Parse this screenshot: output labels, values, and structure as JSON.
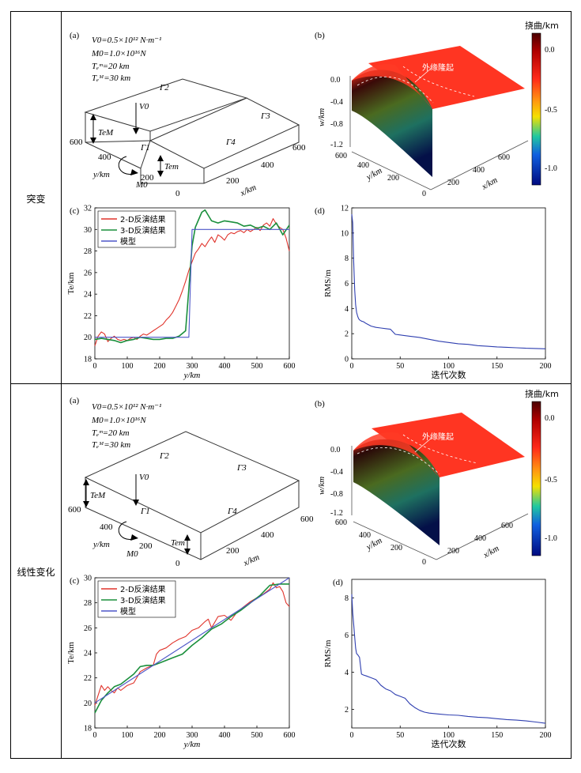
{
  "row_labels": [
    "突变",
    "线性变化"
  ],
  "panel_letters": {
    "a": "(a)",
    "b": "(b)",
    "c": "(c)",
    "d": "(d)"
  },
  "params": {
    "V0": "V0=0.5×10¹² N·m⁻¹",
    "M0": "M0=1.0×10¹⁶N",
    "Tem": "Tₑᵐ=20 km",
    "TeM": "Tₑᴹ=30 km"
  },
  "block_labels": {
    "gamma1": "Γ1",
    "gamma2": "Γ2",
    "gamma3": "Γ3",
    "gamma4": "Γ4",
    "v0": "V0",
    "m0": "M0",
    "teM": "TeM",
    "tem": "Tem"
  },
  "block_axes": {
    "y_label": "y/km",
    "x_label": "x/km",
    "y_ticks": [
      "600",
      "400",
      "200",
      "0"
    ],
    "x_ticks": [
      "200",
      "400",
      "600"
    ]
  },
  "surface": {
    "w_label": "w/km",
    "z_ticks": [
      "0.0",
      "-0.4",
      "-0.8",
      "-1.2"
    ],
    "y_label": "y/km",
    "x_label": "x/km",
    "y_ticks": [
      "600",
      "400",
      "200",
      "0"
    ],
    "x_ticks": [
      "200",
      "400",
      "600"
    ],
    "annotation": "外缘隆起",
    "colorbar_title": "挠曲/km",
    "colorbar_ticks": [
      "0.0",
      "-0.5",
      "-1.0"
    ],
    "colors": {
      "top": "#5a0000",
      "mid_red": "#ff2a1a",
      "yellow": "#f5e000",
      "cyan": "#20c8d8",
      "blue": "#001a9a",
      "surface_flat": "#ff3322"
    }
  },
  "chart_data": [
    {
      "id": "row1_c",
      "type": "line",
      "xlabel": "y/km",
      "ylabel": "Te/km",
      "xlim": [
        0,
        600
      ],
      "ylim": [
        18,
        32
      ],
      "x_ticks": [
        0,
        100,
        200,
        300,
        400,
        500,
        600
      ],
      "y_ticks": [
        18,
        20,
        22,
        24,
        26,
        28,
        30,
        32
      ],
      "legend_position": "top-left",
      "series": [
        {
          "name": "2-D反演结果",
          "color": "#e0332b",
          "x": [
            0,
            10,
            20,
            30,
            40,
            50,
            60,
            70,
            80,
            90,
            100,
            110,
            120,
            130,
            140,
            150,
            160,
            170,
            180,
            190,
            200,
            210,
            220,
            230,
            240,
            250,
            260,
            270,
            280,
            290,
            300,
            310,
            320,
            330,
            340,
            350,
            360,
            370,
            380,
            390,
            400,
            410,
            420,
            430,
            440,
            450,
            460,
            470,
            480,
            490,
            500,
            510,
            520,
            530,
            540,
            550,
            560,
            570,
            580,
            590,
            600
          ],
          "y": [
            19.2,
            20.1,
            20.5,
            20.3,
            19.6,
            19.9,
            20.1,
            19.8,
            19.7,
            19.8,
            19.7,
            19.9,
            20.0,
            19.8,
            20.1,
            20.3,
            20.2,
            20.4,
            20.6,
            20.8,
            21.0,
            21.2,
            21.6,
            21.9,
            22.3,
            22.9,
            23.5,
            24.3,
            25.2,
            26.2,
            27.0,
            27.8,
            28.2,
            28.7,
            28.4,
            28.9,
            29.3,
            28.8,
            29.5,
            29.3,
            29.0,
            29.5,
            29.7,
            29.6,
            29.8,
            29.9,
            29.7,
            30.0,
            29.8,
            30.0,
            30.2,
            29.9,
            30.4,
            30.6,
            30.3,
            31.0,
            30.5,
            30.2,
            30.0,
            29.2,
            28.0
          ]
        },
        {
          "name": "3-D反演结果",
          "color": "#1a8f3c",
          "x": [
            0,
            20,
            40,
            60,
            80,
            100,
            120,
            140,
            160,
            180,
            200,
            220,
            240,
            260,
            280,
            290,
            300,
            310,
            320,
            330,
            340,
            350,
            360,
            380,
            400,
            420,
            440,
            460,
            480,
            500,
            520,
            540,
            560,
            580,
            600
          ],
          "y": [
            19.8,
            19.9,
            19.8,
            19.7,
            19.5,
            19.7,
            19.8,
            20.0,
            19.9,
            19.8,
            19.8,
            19.9,
            19.9,
            20.1,
            20.6,
            24.5,
            28.5,
            30.2,
            30.9,
            31.6,
            31.8,
            31.3,
            30.8,
            30.6,
            30.8,
            30.7,
            30.6,
            30.3,
            30.4,
            30.1,
            30.3,
            30.0,
            30.6,
            29.5,
            30.4
          ]
        },
        {
          "name": "模型",
          "color": "#4d57c8",
          "x": [
            0,
            290,
            300,
            600
          ],
          "y": [
            20,
            20,
            30,
            30
          ]
        }
      ]
    },
    {
      "id": "row1_d",
      "type": "line",
      "xlabel": "迭代次数",
      "ylabel": "RMS/m",
      "xlim": [
        0,
        200
      ],
      "ylim": [
        0,
        12
      ],
      "x_ticks": [
        0,
        50,
        100,
        150,
        200
      ],
      "y_ticks": [
        0,
        2,
        4,
        6,
        8,
        10,
        12
      ],
      "series": [
        {
          "name": "RMS",
          "color": "#2f3fb0",
          "x": [
            0,
            1,
            2,
            3,
            4,
            5,
            6,
            7,
            8,
            10,
            12,
            15,
            20,
            25,
            30,
            35,
            40,
            45,
            50,
            60,
            70,
            80,
            90,
            100,
            110,
            120,
            130,
            140,
            150,
            160,
            170,
            180,
            190,
            200
          ],
          "y": [
            11.5,
            10.8,
            7.8,
            5.5,
            4.3,
            3.7,
            3.4,
            3.2,
            3.1,
            3.0,
            2.95,
            2.8,
            2.6,
            2.5,
            2.45,
            2.4,
            2.35,
            1.95,
            1.9,
            1.8,
            1.7,
            1.55,
            1.4,
            1.3,
            1.2,
            1.15,
            1.05,
            1.0,
            0.95,
            0.92,
            0.88,
            0.84,
            0.82,
            0.8
          ]
        }
      ]
    },
    {
      "id": "row2_c",
      "type": "line",
      "xlabel": "y/km",
      "ylabel": "Te/km",
      "xlim": [
        0,
        600
      ],
      "ylim": [
        18,
        30
      ],
      "x_ticks": [
        0,
        100,
        200,
        300,
        400,
        500,
        600
      ],
      "y_ticks": [
        18,
        20,
        22,
        24,
        26,
        28,
        30
      ],
      "legend_position": "top-left",
      "series": [
        {
          "name": "2-D反演结果",
          "color": "#e0332b",
          "x": [
            0,
            10,
            20,
            30,
            40,
            50,
            60,
            70,
            80,
            100,
            120,
            140,
            160,
            180,
            190,
            200,
            220,
            240,
            260,
            280,
            300,
            320,
            340,
            350,
            360,
            380,
            400,
            420,
            440,
            460,
            480,
            500,
            520,
            540,
            550,
            560,
            570,
            580,
            590,
            600
          ],
          "y": [
            19.8,
            20.6,
            21.4,
            21.0,
            21.3,
            21.0,
            20.8,
            21.2,
            21.0,
            21.4,
            21.6,
            22.5,
            22.8,
            23.0,
            23.9,
            24.2,
            24.4,
            24.8,
            25.1,
            25.3,
            25.8,
            26.0,
            26.5,
            26.7,
            26.0,
            26.9,
            27.0,
            26.6,
            27.3,
            27.7,
            28.1,
            28.4,
            28.7,
            29.1,
            29.6,
            29.2,
            29.3,
            28.9,
            28.0,
            27.7
          ]
        },
        {
          "name": "3-D反演结果",
          "color": "#1a8f3c",
          "x": [
            0,
            20,
            40,
            60,
            80,
            100,
            120,
            140,
            160,
            180,
            200,
            220,
            240,
            270,
            300,
            330,
            360,
            390,
            420,
            450,
            480,
            510,
            540,
            570,
            600
          ],
          "y": [
            19.2,
            20.2,
            20.8,
            21.3,
            21.5,
            21.9,
            22.3,
            22.9,
            23.0,
            23.0,
            23.2,
            23.4,
            23.6,
            23.9,
            24.6,
            25.2,
            25.9,
            26.3,
            26.9,
            27.4,
            28.0,
            28.6,
            29.4,
            29.5,
            29.5
          ]
        },
        {
          "name": "模型",
          "color": "#4d57c8",
          "x": [
            0,
            600
          ],
          "y": [
            20,
            30
          ]
        }
      ]
    },
    {
      "id": "row2_d",
      "type": "line",
      "xlabel": "迭代次数",
      "ylabel": "RMS/m",
      "xlim": [
        0,
        200
      ],
      "ylim": [
        1,
        9
      ],
      "x_ticks": [
        0,
        50,
        100,
        150,
        200
      ],
      "y_ticks": [
        2,
        4,
        6,
        8
      ],
      "series": [
        {
          "name": "RMS",
          "color": "#2f3fb0",
          "x": [
            0,
            1,
            2,
            3,
            4,
            5,
            6,
            8,
            10,
            12,
            15,
            20,
            25,
            30,
            35,
            40,
            45,
            50,
            55,
            60,
            65,
            70,
            75,
            80,
            90,
            100,
            110,
            120,
            130,
            140,
            150,
            160,
            170,
            180,
            190,
            200
          ],
          "y": [
            8.2,
            7.2,
            6.6,
            5.9,
            5.3,
            5.0,
            4.95,
            4.8,
            3.9,
            3.85,
            3.8,
            3.7,
            3.6,
            3.3,
            3.1,
            3.0,
            2.8,
            2.7,
            2.6,
            2.3,
            2.1,
            1.95,
            1.85,
            1.8,
            1.75,
            1.7,
            1.68,
            1.62,
            1.58,
            1.55,
            1.5,
            1.45,
            1.42,
            1.38,
            1.32,
            1.25
          ]
        }
      ]
    }
  ]
}
